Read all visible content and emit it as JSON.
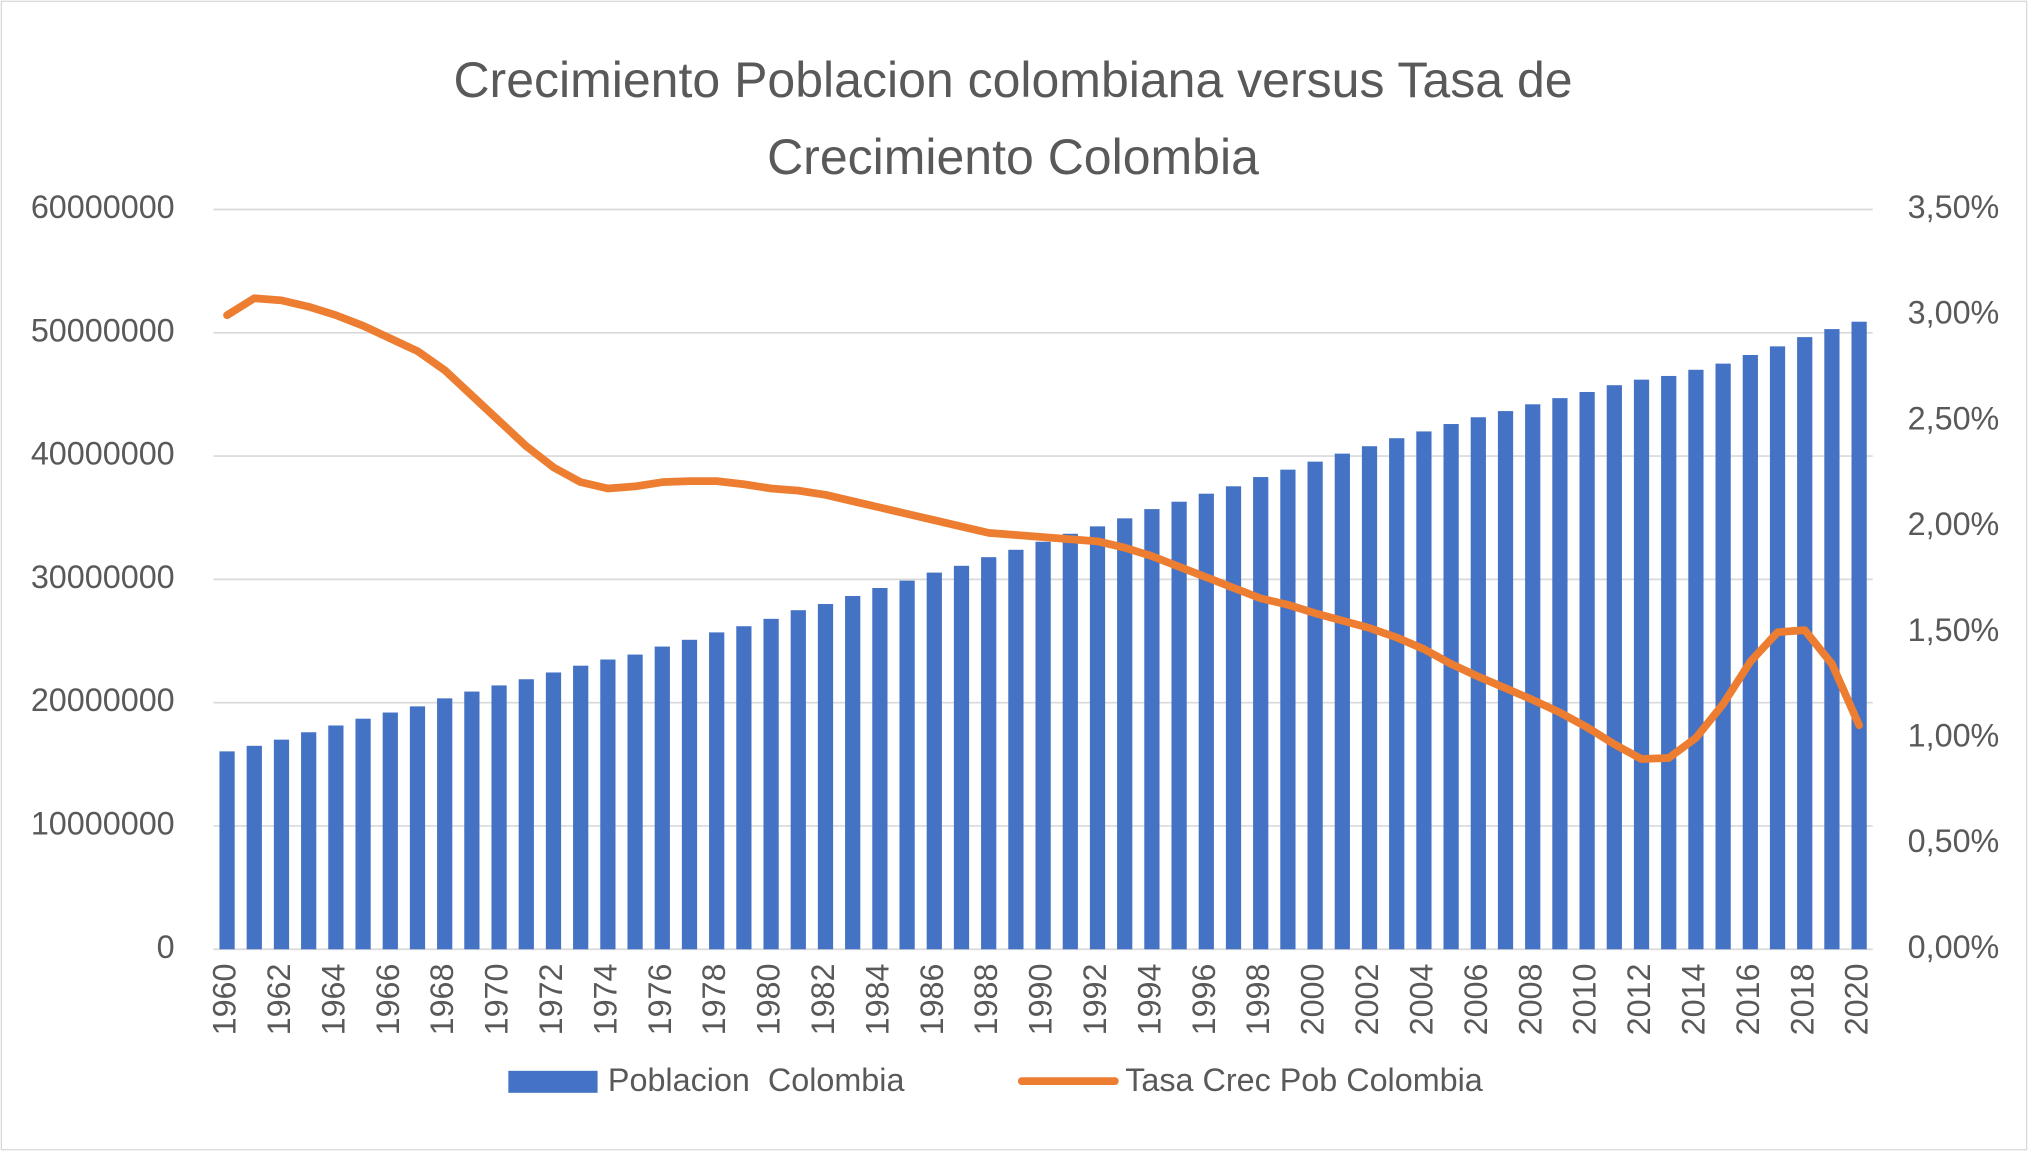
{
  "chart_data": {
    "type": "bar-line",
    "title": "Crecimiento Poblacion colombiana versus Tasa de Crecimiento Colombia",
    "categories": [
      "1960",
      null,
      "1962",
      null,
      "1964",
      null,
      "1966",
      null,
      "1968",
      null,
      "1970",
      null,
      "1972",
      null,
      "1974",
      null,
      "1976",
      null,
      "1978",
      null,
      "1980",
      null,
      "1982",
      null,
      "1984",
      null,
      "1986",
      null,
      "1988",
      null,
      "1990",
      null,
      "1992",
      null,
      "1994",
      null,
      "1996",
      null,
      "1998",
      null,
      "2000",
      null,
      "2002",
      null,
      "2004",
      null,
      "2006",
      null,
      "2008",
      null,
      "2010",
      null,
      "2012",
      null,
      "2014",
      null,
      "2016",
      null,
      "2018",
      null,
      "2020"
    ],
    "series": [
      {
        "name": "Poblacion  Colombia",
        "type": "bar",
        "color": "#4472c4",
        "values": [
          16050000,
          16500000,
          17000000,
          17600000,
          18150000,
          18700000,
          19200000,
          19700000,
          20350000,
          20900000,
          21400000,
          21900000,
          22450000,
          23000000,
          23500000,
          23900000,
          24550000,
          25100000,
          25700000,
          26200000,
          26800000,
          27500000,
          28000000,
          28650000,
          29300000,
          29900000,
          30550000,
          31100000,
          31800000,
          32400000,
          33050000,
          33700000,
          34300000,
          34950000,
          35700000,
          36300000,
          36950000,
          37550000,
          38300000,
          38900000,
          39550000,
          40200000,
          40800000,
          41450000,
          42000000,
          42600000,
          43150000,
          43650000,
          44200000,
          44700000,
          45200000,
          45750000,
          46200000,
          46500000,
          47000000,
          47500000,
          48200000,
          48900000,
          49650000,
          50300000,
          50900000
        ]
      },
      {
        "name": "Tasa Crec Pob Colombia",
        "type": "line",
        "axis": "y2",
        "color": "#ed7d31",
        "values": [
          3.0,
          3.08,
          3.07,
          3.04,
          3.0,
          2.95,
          2.89,
          2.83,
          2.74,
          2.62,
          2.5,
          2.38,
          2.28,
          2.21,
          2.18,
          2.19,
          2.21,
          2.215,
          2.215,
          2.2,
          2.18,
          2.17,
          2.15,
          2.12,
          2.09,
          2.06,
          2.03,
          2.0,
          1.97,
          1.96,
          1.95,
          1.94,
          1.93,
          1.9,
          1.86,
          1.81,
          1.76,
          1.71,
          1.66,
          1.63,
          1.59,
          1.555,
          1.52,
          1.475,
          1.42,
          1.35,
          1.29,
          1.235,
          1.18,
          1.12,
          1.05,
          0.97,
          0.9,
          0.905,
          1.0,
          1.16,
          1.36,
          1.5,
          1.51,
          1.35,
          1.06
        ]
      }
    ],
    "ylim": [
      0,
      60000000
    ],
    "yticks": [
      0,
      10000000,
      20000000,
      30000000,
      40000000,
      50000000,
      60000000
    ],
    "y2lim": [
      0,
      3.5
    ],
    "y2ticks": [
      {
        "value": 0,
        "label": "0,00%"
      },
      {
        "value": 0.5,
        "label": "0,50%"
      },
      {
        "value": 1,
        "label": "1,00%"
      },
      {
        "value": 1.5,
        "label": "1,50%"
      },
      {
        "value": 2,
        "label": "2,00%"
      },
      {
        "value": 2.5,
        "label": "2,50%"
      },
      {
        "value": 3,
        "label": "3,00%"
      },
      {
        "value": 3.5,
        "label": "3,50%"
      }
    ],
    "grid": true,
    "legend": "bottom"
  }
}
